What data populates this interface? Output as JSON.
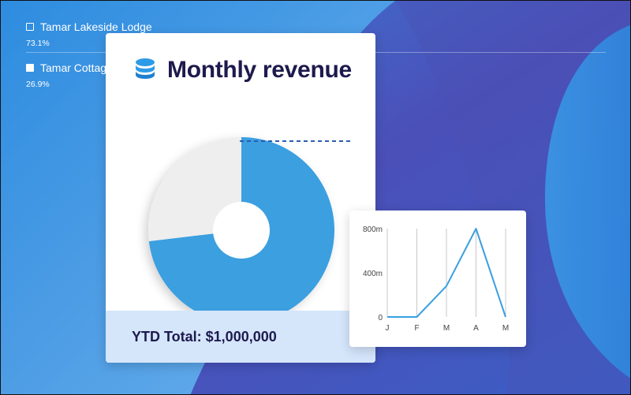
{
  "colors": {
    "accent": "#3a9fe0",
    "pie_secondary": "#eeeeee",
    "title_text": "#1d1a4d",
    "footer_bg": "#d5e6fb",
    "dashed_connector": "#2a5db0"
  },
  "card": {
    "icon": "database-icon",
    "title": "Monthly revenue",
    "footer_total": "YTD Total: $1,000,000"
  },
  "chart_data": [
    {
      "type": "pie",
      "labels": [
        "Tamar Lakeside Lodge",
        "Tamar Cottage"
      ],
      "values": [
        73.1,
        26.9
      ],
      "value_labels": [
        "73.1%",
        "26.9%"
      ],
      "donut": true,
      "legend": "right"
    },
    {
      "type": "line",
      "categories": [
        "J",
        "F",
        "M",
        "A",
        "M"
      ],
      "values": [
        0,
        0,
        280,
        800,
        0
      ],
      "yticks": [
        "0",
        "400m",
        "800m"
      ],
      "ylim": [
        0,
        800
      ],
      "grid": "vertical"
    }
  ]
}
